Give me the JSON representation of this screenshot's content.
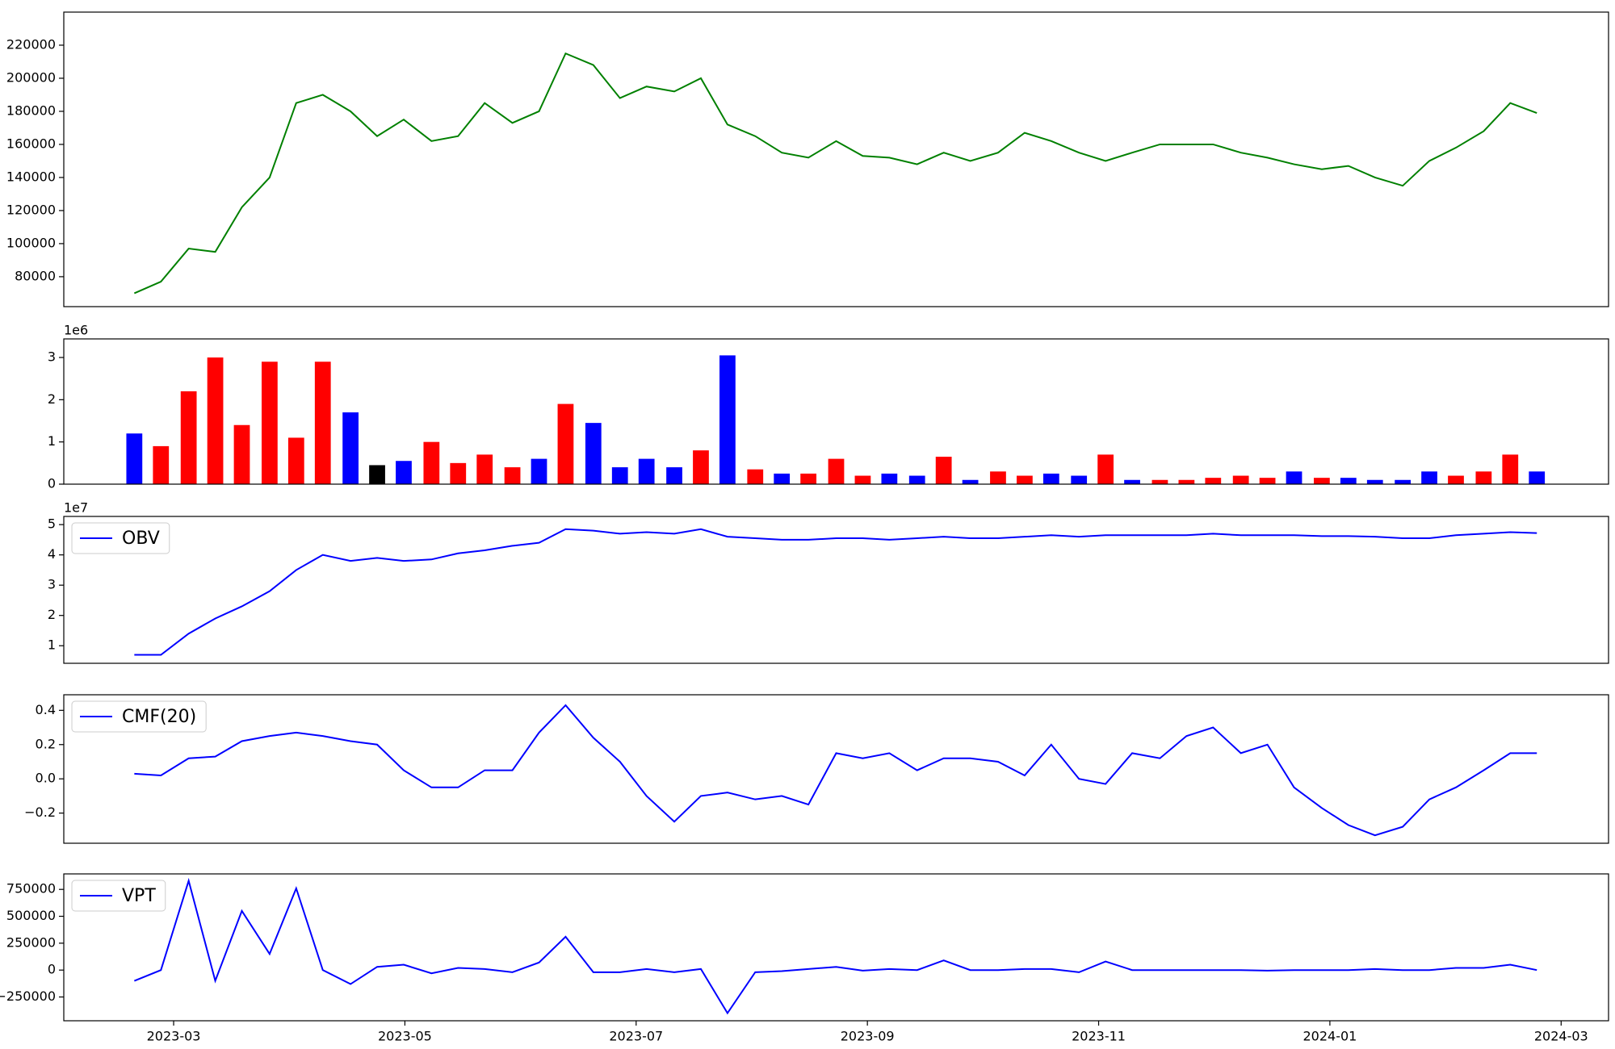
{
  "chart_data": {
    "type": "multi-panel",
    "x": [
      2.66,
      2.89,
      3.13,
      3.36,
      3.59,
      3.83,
      4.06,
      4.29,
      4.53,
      4.76,
      4.99,
      5.23,
      5.46,
      5.69,
      5.93,
      6.16,
      6.39,
      6.63,
      6.86,
      7.09,
      7.33,
      7.56,
      7.79,
      8.03,
      8.26,
      8.49,
      8.73,
      8.96,
      9.19,
      9.43,
      9.66,
      9.89,
      10.13,
      10.36,
      10.59,
      10.83,
      11.06,
      11.29,
      11.53,
      11.76,
      11.99,
      12.23,
      12.46,
      12.69,
      12.93,
      13.16,
      13.39,
      13.63,
      13.86,
      14.09,
      14.33,
      14.56,
      14.79
    ],
    "xlim": [
      2.05,
      15.41
    ],
    "xticks": [
      {
        "value": 3,
        "label": "2023-03"
      },
      {
        "value": 5,
        "label": "2023-05"
      },
      {
        "value": 7,
        "label": "2023-07"
      },
      {
        "value": 9,
        "label": "2023-09"
      },
      {
        "value": 11,
        "label": "2023-11"
      },
      {
        "value": 13,
        "label": "2024-01"
      },
      {
        "value": 15,
        "label": "2024-03"
      }
    ],
    "panels": [
      {
        "type": "line",
        "ylim": [
          61900,
          240000
        ],
        "yticks": [
          80000,
          100000,
          120000,
          140000,
          160000,
          180000,
          200000,
          220000
        ],
        "series": [
          {
            "color": "#008000",
            "values": [
              70000,
              77000,
              97000,
              95000,
              122000,
              140000,
              185000,
              190000,
              180000,
              165000,
              175000,
              162000,
              165000,
              185000,
              173000,
              180000,
              215000,
              208000,
              188000,
              195000,
              192000,
              200000,
              172000,
              165000,
              155000,
              152000,
              162000,
              153000,
              152000,
              148000,
              155000,
              150000,
              155000,
              167000,
              162000,
              155000,
              150000,
              155000,
              160000,
              160000,
              160000,
              155000,
              152000,
              148000,
              145000,
              147000,
              140000,
              135000,
              150000,
              158000,
              168000,
              185000,
              179000
            ]
          }
        ]
      },
      {
        "type": "bar",
        "ylim": [
          0,
          3440000
        ],
        "y_offset_label": "1e6",
        "yticks": [
          {
            "value": 0,
            "label": "0"
          },
          {
            "value": 1000000,
            "label": "1"
          },
          {
            "value": 2000000,
            "label": "2"
          },
          {
            "value": 3000000,
            "label": "3"
          }
        ],
        "series": [
          {
            "values": [
              1200000,
              900000,
              2200000,
              3000000,
              1400000,
              2900000,
              1100000,
              2900000,
              1700000,
              450000,
              550000,
              1000000,
              500000,
              700000,
              400000,
              600000,
              1900000,
              1450000,
              400000,
              600000,
              400000,
              800000,
              3050000,
              350000,
              250000,
              250000,
              600000,
              200000,
              250000,
              200000,
              650000,
              100000,
              300000,
              200000,
              250000,
              200000,
              700000,
              100000,
              100000,
              100000,
              150000,
              200000,
              150000,
              300000,
              150000,
              150000,
              100000,
              100000,
              300000,
              200000,
              300000,
              700000,
              300000
            ],
            "colors": [
              "#0000ff",
              "#ff0000",
              "#ff0000",
              "#ff0000",
              "#ff0000",
              "#ff0000",
              "#ff0000",
              "#ff0000",
              "#0000ff",
              "#000000",
              "#0000ff",
              "#ff0000",
              "#ff0000",
              "#ff0000",
              "#ff0000",
              "#0000ff",
              "#ff0000",
              "#0000ff",
              "#0000ff",
              "#0000ff",
              "#0000ff",
              "#ff0000",
              "#0000ff",
              "#ff0000",
              "#0000ff",
              "#ff0000",
              "#ff0000",
              "#ff0000",
              "#0000ff",
              "#0000ff",
              "#ff0000",
              "#0000ff",
              "#ff0000",
              "#ff0000",
              "#0000ff",
              "#0000ff",
              "#ff0000",
              "#0000ff",
              "#ff0000",
              "#ff0000",
              "#ff0000",
              "#ff0000",
              "#ff0000",
              "#0000ff",
              "#ff0000",
              "#0000ff",
              "#0000ff",
              "#0000ff",
              "#0000ff",
              "#ff0000",
              "#ff0000",
              "#ff0000",
              "#0000ff"
            ]
          }
        ]
      },
      {
        "type": "line",
        "ylim": [
          4200000,
          52700000
        ],
        "y_offset_label": "1e7",
        "legend": "upper left",
        "yticks": [
          {
            "value": 10000000,
            "label": "1"
          },
          {
            "value": 20000000,
            "label": "2"
          },
          {
            "value": 30000000,
            "label": "3"
          },
          {
            "value": 40000000,
            "label": "4"
          },
          {
            "value": 50000000,
            "label": "5"
          }
        ],
        "series": [
          {
            "name": "OBV",
            "color": "#0000ff",
            "values": [
              7000000,
              7000000,
              14000000,
              19000000,
              23000000,
              28000000,
              35000000,
              40000000,
              38000000,
              39000000,
              38000000,
              38500000,
              40500000,
              41500000,
              43000000,
              44000000,
              48500000,
              48000000,
              47000000,
              47500000,
              47000000,
              48500000,
              46000000,
              45500000,
              45000000,
              45000000,
              45500000,
              45500000,
              45000000,
              45500000,
              46000000,
              45500000,
              45500000,
              46000000,
              46500000,
              46000000,
              46500000,
              46500000,
              46500000,
              46500000,
              47000000,
              46500000,
              46500000,
              46500000,
              46200000,
              46200000,
              46000000,
              45500000,
              45500000,
              46500000,
              47000000,
              47500000,
              47200000
            ]
          }
        ]
      },
      {
        "type": "line",
        "ylim": [
          -0.376,
          0.491
        ],
        "legend": "upper left",
        "yticks": [
          {
            "value": -0.2,
            "label": "−0.2"
          },
          {
            "value": 0,
            "label": "0.0"
          },
          0.2,
          0.4
        ],
        "series": [
          {
            "name": "CMF(20)",
            "color": "#0000ff",
            "values": [
              0.03,
              0.02,
              0.12,
              0.13,
              0.22,
              0.25,
              0.27,
              0.25,
              0.22,
              0.2,
              0.05,
              -0.05,
              -0.05,
              0.05,
              0.05,
              0.27,
              0.43,
              0.24,
              0.1,
              -0.1,
              -0.25,
              -0.1,
              -0.08,
              -0.12,
              -0.1,
              -0.15,
              0.15,
              0.12,
              0.15,
              0.05,
              0.12,
              0.12,
              0.1,
              0.02,
              0.2,
              0,
              -0.03,
              0.15,
              0.12,
              0.25,
              0.3,
              0.15,
              0.2,
              -0.05,
              -0.17,
              -0.27,
              -0.33,
              -0.28,
              -0.12,
              -0.05,
              0.05,
              0.15,
              0.15
            ]
          }
        ]
      },
      {
        "type": "line",
        "ylim": [
          -471000,
          894000
        ],
        "legend": "upper left",
        "yticks": [
          {
            "value": -250000,
            "label": "−250000"
          },
          0,
          250000,
          500000,
          750000
        ],
        "series": [
          {
            "name": "VPT",
            "color": "#0000ff",
            "values": [
              -100000,
              0,
              830000,
              -100000,
              550000,
              150000,
              760000,
              0,
              -130000,
              30000,
              50000,
              -30000,
              20000,
              10000,
              -20000,
              70000,
              310000,
              -20000,
              -20000,
              10000,
              -20000,
              10000,
              -400000,
              -20000,
              -10000,
              10000,
              30000,
              -5000,
              10000,
              0,
              90000,
              0,
              0,
              10000,
              10000,
              -20000,
              80000,
              0,
              0,
              0,
              0,
              0,
              -5000,
              0,
              0,
              0,
              10000,
              0,
              0,
              20000,
              20000,
              50000,
              0
            ]
          }
        ]
      }
    ]
  }
}
